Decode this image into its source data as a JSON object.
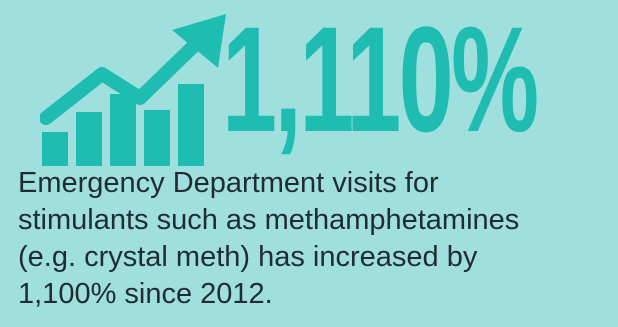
{
  "headline": {
    "value": "1,110%",
    "icon": "trending-up-bar-chart-icon",
    "color": "#1fbcb2"
  },
  "description": {
    "lines": [
      "Emergency Department visits for",
      "stimulants such as methamphetamines",
      "(e.g. crystal meth) has increased by",
      "1,100% since 2012."
    ]
  },
  "colors": {
    "background": "#9fe0de",
    "accent": "#1fbcb2",
    "text": "#1f2d33"
  }
}
